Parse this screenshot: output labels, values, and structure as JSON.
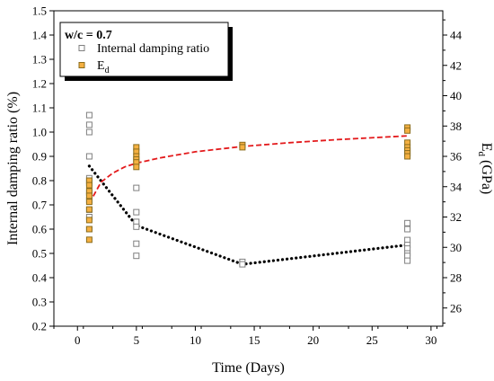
{
  "chart_data": {
    "type": "scatter",
    "xlabel": "Time (Days)",
    "ylabel_left": "Internal damping ratio (%)",
    "ylabel_right": {
      "main": "E",
      "sub": "d",
      "unit": " (GPa)"
    },
    "xlim": [
      -2,
      31
    ],
    "ylim_left": [
      0.2,
      1.5
    ],
    "ylim_right": [
      24.8,
      45.6
    ],
    "x_ticks": [
      0,
      5,
      10,
      15,
      20,
      25,
      30
    ],
    "y_left_ticks": [
      0.2,
      0.3,
      0.4,
      0.5,
      0.6,
      0.7,
      0.8,
      0.9,
      1.0,
      1.1,
      1.2,
      1.3,
      1.4,
      1.5
    ],
    "y_left_tick_labels": [
      "0.2",
      "0.3",
      "0.4",
      "0.5",
      "0.6",
      "0.7",
      "0.8",
      "0.9",
      "1.0",
      "1.1",
      "1.2",
      "1.3",
      "1.4",
      "1.5"
    ],
    "y_right_ticks": [
      26,
      28,
      30,
      32,
      34,
      36,
      38,
      40,
      42,
      44
    ],
    "legend": {
      "title": "w/c = 0.7",
      "placement": "top-left",
      "entries": [
        {
          "label": "Internal damping ratio"
        },
        {
          "label_main": "E",
          "label_sub": "d"
        }
      ]
    },
    "series": [
      {
        "name": "Internal damping ratio",
        "axis": "left",
        "marker": "open-square",
        "color": "#7f7f7f",
        "points": [
          [
            1,
            1.07
          ],
          [
            1,
            1.03
          ],
          [
            1,
            1.0
          ],
          [
            1,
            0.9
          ],
          [
            1,
            0.81
          ],
          [
            1,
            0.79
          ],
          [
            1,
            0.75
          ],
          [
            1,
            0.72
          ],
          [
            1,
            0.68
          ],
          [
            1,
            0.65
          ],
          [
            1,
            0.6
          ],
          [
            5,
            0.77
          ],
          [
            5,
            0.67
          ],
          [
            5,
            0.63
          ],
          [
            5,
            0.61
          ],
          [
            5,
            0.54
          ],
          [
            5,
            0.49
          ],
          [
            14,
            0.465
          ],
          [
            14,
            0.455
          ],
          [
            28,
            0.625
          ],
          [
            28,
            0.6
          ],
          [
            28,
            0.555
          ],
          [
            28,
            0.535
          ],
          [
            28,
            0.52
          ],
          [
            28,
            0.5
          ],
          [
            28,
            0.49
          ],
          [
            28,
            0.47
          ]
        ]
      },
      {
        "name": "Ed",
        "axis": "right",
        "marker": "filled-square",
        "color": "#f5b041",
        "edge": "#8a6d1e",
        "points": [
          [
            1,
            34.4
          ],
          [
            1,
            34.1
          ],
          [
            1,
            33.7
          ],
          [
            1,
            33.4
          ],
          [
            1,
            33.0
          ],
          [
            1,
            32.5
          ],
          [
            1,
            31.8
          ],
          [
            1,
            31.2
          ],
          [
            1,
            30.5
          ],
          [
            5,
            36.6
          ],
          [
            5,
            36.3
          ],
          [
            5,
            36.0
          ],
          [
            5,
            35.8
          ],
          [
            5,
            35.6
          ],
          [
            5,
            35.3
          ],
          [
            14,
            36.75
          ],
          [
            14,
            36.6
          ],
          [
            28,
            37.9
          ],
          [
            28,
            37.7
          ],
          [
            28,
            36.9
          ],
          [
            28,
            36.6
          ],
          [
            28,
            36.4
          ],
          [
            28,
            36.2
          ],
          [
            28,
            36.0
          ]
        ]
      }
    ],
    "trend_lines": [
      {
        "series": "Internal damping ratio",
        "axis": "left",
        "style": "dotted",
        "color": "#000000",
        "points": [
          [
            1,
            0.86
          ],
          [
            5,
            0.615
          ],
          [
            14,
            0.455
          ],
          [
            28,
            0.535
          ]
        ]
      },
      {
        "series": "Ed",
        "axis": "right",
        "style": "dashed",
        "color": "#e31a1c",
        "points": [
          [
            1,
            32.9
          ],
          [
            2,
            34.3
          ],
          [
            3,
            34.9
          ],
          [
            4,
            35.3
          ],
          [
            5,
            35.55
          ],
          [
            7,
            35.9
          ],
          [
            10,
            36.3
          ],
          [
            14,
            36.65
          ],
          [
            18,
            36.9
          ],
          [
            22,
            37.1
          ],
          [
            28,
            37.35
          ]
        ]
      }
    ]
  }
}
